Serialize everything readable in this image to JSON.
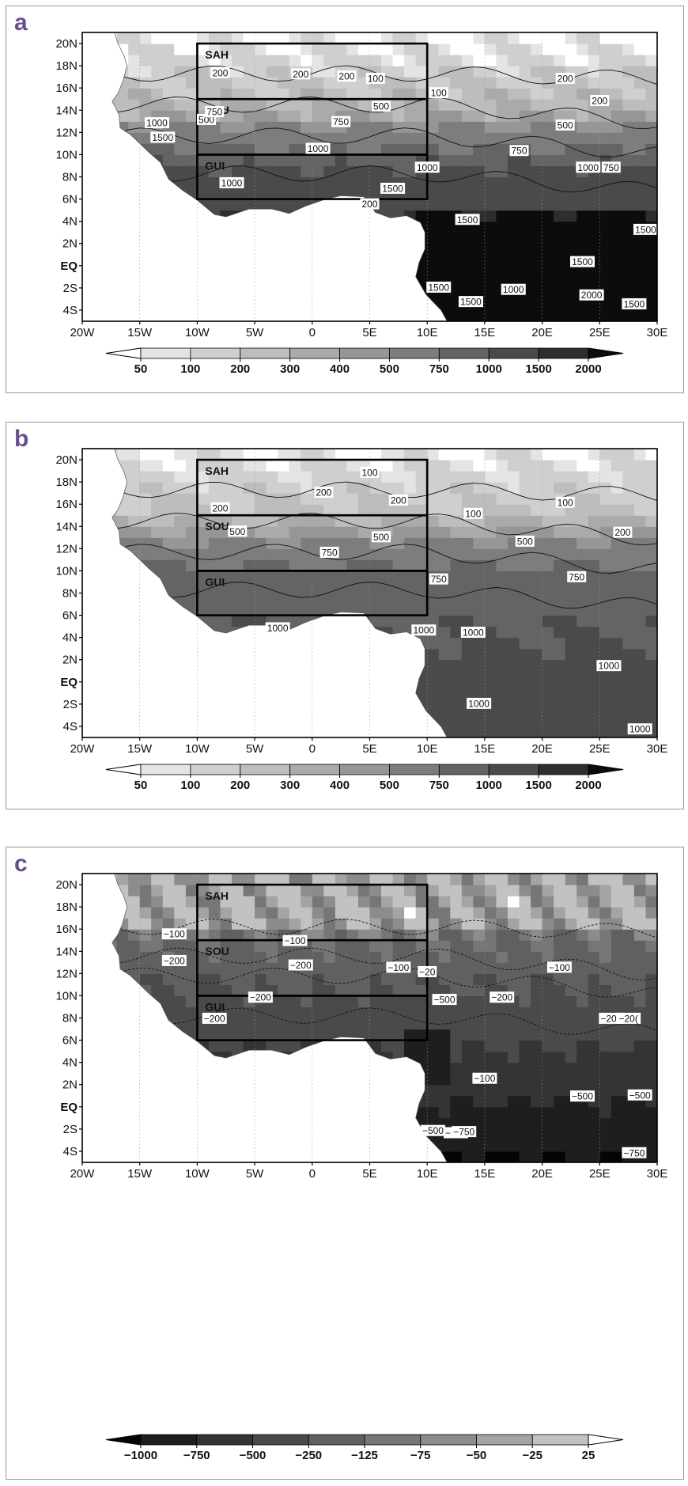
{
  "panels": [
    {
      "letter": "a",
      "regions": [
        "SAH",
        "SOU",
        "GUI"
      ],
      "contour_labels": [
        "200",
        "200",
        "200",
        "100",
        "100",
        "200",
        "200",
        "500",
        "500",
        "750",
        "750",
        "1000",
        "1000",
        "1500",
        "1000",
        "1000",
        "1500",
        "200",
        "750",
        "500",
        "1000",
        "750",
        "1500",
        "1500",
        "1500",
        "1500",
        "1000",
        "1500",
        "1500",
        "2000"
      ],
      "colorbar": {
        "ticks": [
          "50",
          "100",
          "200",
          "300",
          "400",
          "500",
          "750",
          "1000",
          "1500",
          "2000"
        ],
        "direction": "ascending",
        "shades": [
          "#ffffff",
          "#e4e4e4",
          "#cfcfcf",
          "#bdbdbd",
          "#aaaaaa",
          "#969696",
          "#7d7d7d",
          "#646464",
          "#4a4a4a",
          "#2e2e2e",
          "#0c0c0c"
        ]
      }
    },
    {
      "letter": "b",
      "regions": [
        "SAH",
        "SOU",
        "GUI"
      ],
      "contour_labels": [
        "200",
        "200",
        "100",
        "200",
        "100",
        "100",
        "200",
        "500",
        "500",
        "500",
        "750",
        "750",
        "750",
        "1000",
        "1000",
        "1000",
        "1000",
        "1000",
        "1000"
      ],
      "colorbar": {
        "ticks": [
          "50",
          "100",
          "200",
          "300",
          "400",
          "500",
          "750",
          "1000",
          "1500",
          "2000"
        ],
        "direction": "ascending",
        "shades": [
          "#ffffff",
          "#e4e4e4",
          "#cfcfcf",
          "#bdbdbd",
          "#aaaaaa",
          "#969696",
          "#7d7d7d",
          "#646464",
          "#4a4a4a",
          "#2e2e2e",
          "#0c0c0c"
        ]
      }
    },
    {
      "letter": "c",
      "regions": [
        "SAH",
        "SOU",
        "GUI"
      ],
      "contour_labels": [
        "−100",
        "−100",
        "−200",
        "−200",
        "−100",
        "−20",
        "−100",
        "−200",
        "−200",
        "−200",
        "−500",
        "−200",
        "−20(",
        "−100",
        "−500",
        "−500",
        "−500",
        "−100",
        "−750",
        "−750"
      ],
      "colorbar": {
        "ticks": [
          "−1000",
          "−750",
          "−500",
          "−250",
          "−125",
          "−75",
          "−50",
          "−25",
          "25"
        ],
        "direction": "descending",
        "shades": [
          "#050505",
          "#1e1e1e",
          "#343434",
          "#4a4a4a",
          "#606060",
          "#767676",
          "#8c8c8c",
          "#a4a4a4",
          "#c2c2c2",
          "#ffffff"
        ]
      }
    }
  ],
  "axes": {
    "lat_labels": [
      "20N",
      "18N",
      "16N",
      "14N",
      "12N",
      "10N",
      "8N",
      "6N",
      "4N",
      "2N",
      "EQ",
      "2S",
      "4S"
    ],
    "lon_labels": [
      "20W",
      "15W",
      "10W",
      "5W",
      "0",
      "5E",
      "10E",
      "15E",
      "20E",
      "25E",
      "30E"
    ]
  },
  "colors": {
    "panel_letter": "#6a4f8f",
    "ocean": "#ffffff"
  }
}
